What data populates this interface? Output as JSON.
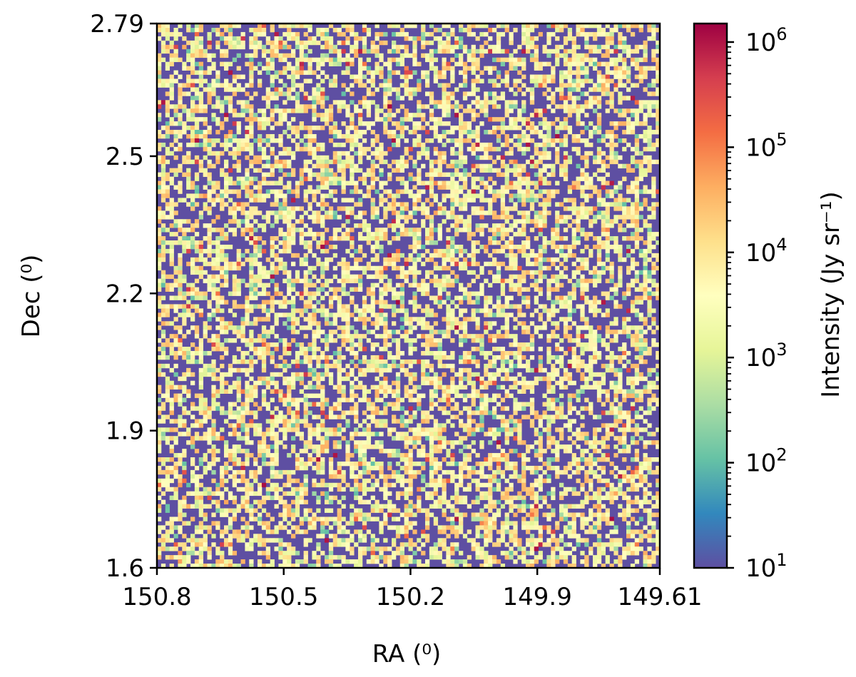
{
  "chart_data": {
    "type": "heatmap",
    "title": "",
    "xlabel": "RA (⁰)",
    "ylabel": "Dec (⁰)",
    "x_axis": {
      "range": [
        150.8,
        149.61
      ],
      "direction": "decreasing",
      "ticks": [
        150.8,
        150.5,
        150.2,
        149.9,
        149.61
      ],
      "tick_labels": [
        "150.8",
        "150.5",
        "150.2",
        "149.9",
        "149.61"
      ]
    },
    "y_axis": {
      "range": [
        1.6,
        2.79
      ],
      "ticks": [
        1.6,
        1.9,
        2.2,
        2.5,
        2.79
      ],
      "tick_labels": [
        "1.6",
        "1.9",
        "2.2",
        "2.5",
        "2.79"
      ]
    },
    "grid": false,
    "pixels": {
      "nx": 120,
      "ny": 128,
      "description": "Noise-like intensity map; roughly 45% of pixels at the colorbar floor (10^1), the rest mostly 10^3 to 10^4.5 with sparse peaks near 10^5.5 to 10^6"
    },
    "colorbar": {
      "label": "Intensity (Jy sr⁻¹)",
      "scale": "log",
      "range": [
        10,
        1500000
      ],
      "colormap": "Spectral_r",
      "colormap_stops": [
        "#5e4fa2",
        "#3288bd",
        "#66c2a5",
        "#abdda4",
        "#e6f598",
        "#ffffbf",
        "#fee08b",
        "#fdae61",
        "#f46d43",
        "#d53e4f",
        "#9e0142"
      ],
      "ticks": [
        10,
        100,
        1000,
        10000,
        100000,
        1000000
      ],
      "tick_bases": [
        "10",
        "10",
        "10",
        "10",
        "10",
        "10"
      ],
      "tick_exponents": [
        "1",
        "2",
        "3",
        "4",
        "5",
        "6"
      ],
      "placement": "right"
    }
  }
}
